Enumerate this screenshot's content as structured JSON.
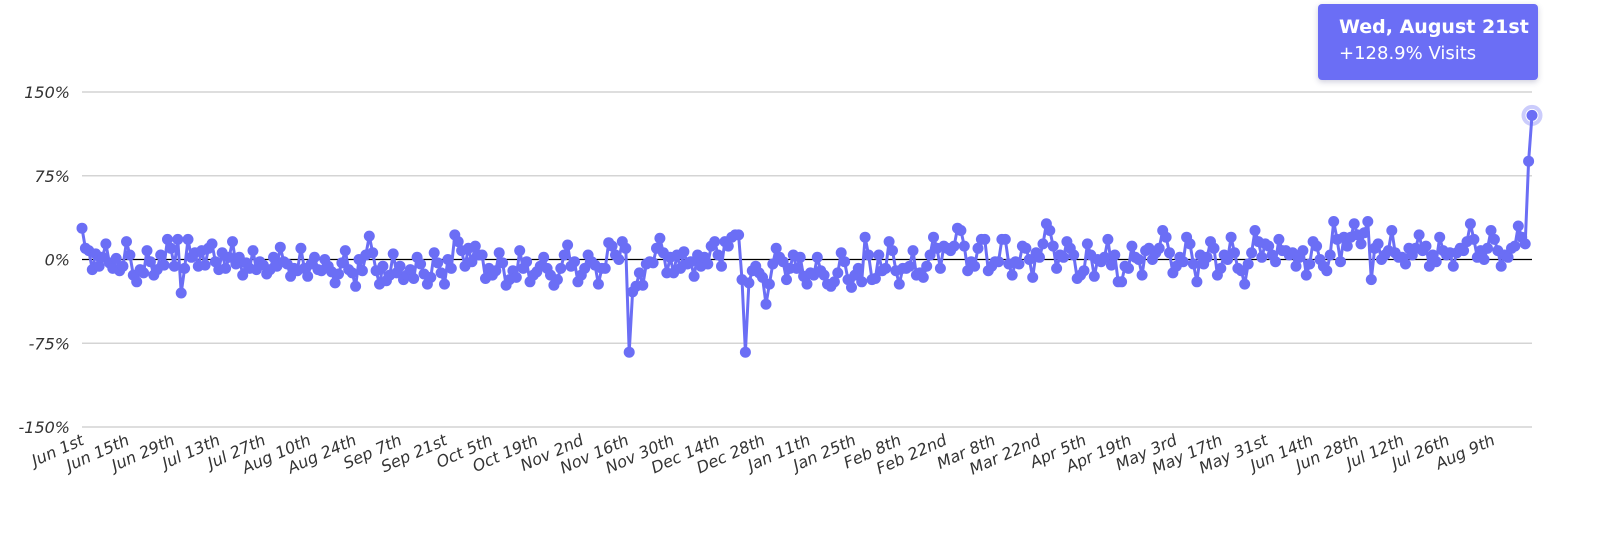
{
  "tooltip": {
    "title": "Wed, August 21st",
    "value": "+128.9% Visits"
  },
  "chart_data": {
    "type": "line",
    "title": "",
    "xlabel": "",
    "ylabel": "",
    "ylim": [
      -150,
      150
    ],
    "y_tick_values": [
      150,
      75,
      0,
      -75,
      -150
    ],
    "y_tick_labels": [
      "150%",
      "75%",
      "0%",
      "-75%",
      "-150%"
    ],
    "grid": true,
    "legend": "none",
    "x_start": "2023-06-01",
    "x_end": "2024-08-21",
    "x_tick_labels": [
      "Jun 1st",
      "Jun 15th",
      "Jun 29th",
      "Jul 13th",
      "Jul 27th",
      "Aug 10th",
      "Aug 24th",
      "Sep 7th",
      "Sep 21st",
      "Oct 5th",
      "Oct 19th",
      "Nov 2nd",
      "Nov 16th",
      "Nov 30th",
      "Dec 14th",
      "Dec 28th",
      "Jan 11th",
      "Jan 25th",
      "Feb 8th",
      "Feb 22nd",
      "Mar 8th",
      "Mar 22nd",
      "Apr 5th",
      "Apr 19th",
      "May 3rd",
      "May 17th",
      "May 31st",
      "Jun 14th",
      "Jun 28th",
      "Jul 12th",
      "Jul 26th",
      "Aug 9th"
    ],
    "x_tick_dates": [
      "2023-06-01",
      "2023-06-15",
      "2023-06-29",
      "2023-07-13",
      "2023-07-27",
      "2023-08-10",
      "2023-08-24",
      "2023-09-07",
      "2023-09-21",
      "2023-10-05",
      "2023-10-19",
      "2023-11-02",
      "2023-11-16",
      "2023-11-30",
      "2023-12-14",
      "2023-12-28",
      "2024-01-11",
      "2024-01-25",
      "2024-02-08",
      "2024-02-22",
      "2024-03-08",
      "2024-03-22",
      "2024-04-05",
      "2024-04-19",
      "2024-05-03",
      "2024-05-17",
      "2024-05-31",
      "2024-06-14",
      "2024-06-28",
      "2024-07-12",
      "2024-07-26",
      "2024-08-09"
    ],
    "series": [
      {
        "color": "#6b6ef5",
        "values": [
          28,
          10,
          8,
          -9,
          5,
          -6,
          2,
          14,
          -3,
          -8,
          1,
          -10,
          -6,
          16,
          4,
          -14,
          -20,
          -9,
          -12,
          8,
          -2,
          -14,
          -9,
          4,
          -5,
          18,
          10,
          -6,
          18,
          -30,
          -8,
          18,
          2,
          6,
          -6,
          8,
          -5,
          10,
          14,
          -2,
          -9,
          6,
          -8,
          2,
          16,
          -4,
          2,
          -14,
          -3,
          -8,
          8,
          -9,
          -2,
          -5,
          -13,
          -9,
          2,
          -6,
          11,
          -2,
          -4,
          -15,
          -8,
          -10,
          10,
          -8,
          -15,
          -4,
          2,
          -9,
          -10,
          0,
          -6,
          -11,
          -21,
          -13,
          -3,
          8,
          -9,
          -12,
          -24,
          0,
          -10,
          4,
          21,
          6,
          -10,
          -22,
          -6,
          -19,
          -14,
          5,
          -12,
          -6,
          -18,
          -14,
          -9,
          -17,
          2,
          -4,
          -13,
          -22,
          -16,
          6,
          -3,
          -12,
          -22,
          0,
          -8,
          22,
          16,
          8,
          -6,
          10,
          -2,
          12,
          4,
          4,
          -17,
          -8,
          -14,
          -10,
          6,
          -3,
          -23,
          -18,
          -10,
          -16,
          8,
          -8,
          -2,
          -20,
          -14,
          -11,
          -6,
          2,
          -8,
          -14,
          -23,
          -18,
          -8,
          4,
          13,
          -6,
          -2,
          -20,
          -14,
          -8,
          4,
          -2,
          -5,
          -22,
          -8,
          -8,
          15,
          12,
          4,
          0,
          16,
          10,
          -83,
          -29,
          -24,
          -12,
          -23,
          -4,
          -2,
          -3,
          10,
          19,
          6,
          -12,
          2,
          -12,
          4,
          -8,
          7,
          -4,
          -2,
          -15,
          4,
          -6,
          2,
          -4,
          12,
          16,
          4,
          -6,
          16,
          12,
          20,
          22,
          22,
          -18,
          -83,
          -21,
          -10,
          -6,
          -12,
          -16,
          -40,
          -22,
          -4,
          10,
          2,
          -2,
          -18,
          -8,
          4,
          -8,
          2,
          -15,
          -22,
          -12,
          -14,
          2,
          -10,
          -14,
          -22,
          -24,
          -20,
          -12,
          6,
          -2,
          -18,
          -25,
          -14,
          -8,
          -20,
          20,
          4,
          -18,
          -17,
          4,
          -10,
          -8,
          16,
          8,
          -10,
          -22,
          -8,
          -8,
          -6,
          8,
          -14,
          -12,
          -16,
          -6,
          4,
          20,
          10,
          -8,
          12,
          10,
          8,
          12,
          28,
          26,
          12,
          -10,
          -2,
          -6,
          10,
          18,
          18,
          -10,
          -6,
          -2,
          -2,
          18,
          18,
          -4,
          -14,
          -2,
          -4,
          12,
          10,
          0,
          -16,
          6,
          2,
          14,
          32,
          26,
          12,
          -8,
          4,
          2,
          16,
          10,
          4,
          -17,
          -14,
          -10,
          14,
          4,
          -15,
          0,
          -2,
          2,
          18,
          -5,
          4,
          -20,
          -20,
          -6,
          -8,
          12,
          2,
          0,
          -14,
          8,
          10,
          0,
          6,
          10,
          26,
          20,
          6,
          -12,
          -6,
          2,
          -2,
          20,
          14,
          -4,
          -20,
          4,
          -4,
          2,
          16,
          10,
          -14,
          -8,
          4,
          0,
          20,
          6,
          -8,
          -10,
          -22,
          -4,
          6,
          26,
          16,
          2,
          14,
          12,
          4,
          -2,
          18,
          8,
          8,
          4,
          6,
          -6,
          2,
          8,
          -14,
          -4,
          16,
          12,
          0,
          -6,
          -10,
          4,
          34,
          18,
          -2,
          20,
          12,
          20,
          32,
          22,
          14,
          24,
          34,
          -18,
          10,
          14,
          0,
          4,
          8,
          26,
          6,
          2,
          2,
          -4,
          10,
          4,
          10,
          22,
          8,
          12,
          -6,
          4,
          -2,
          20,
          8,
          4,
          6,
          -6,
          6,
          10,
          8,
          16,
          32,
          18,
          2,
          8,
          0,
          10,
          26,
          18,
          8,
          -6,
          4,
          2,
          10,
          12,
          30,
          20,
          14,
          88,
          129
        ]
      }
    ]
  }
}
